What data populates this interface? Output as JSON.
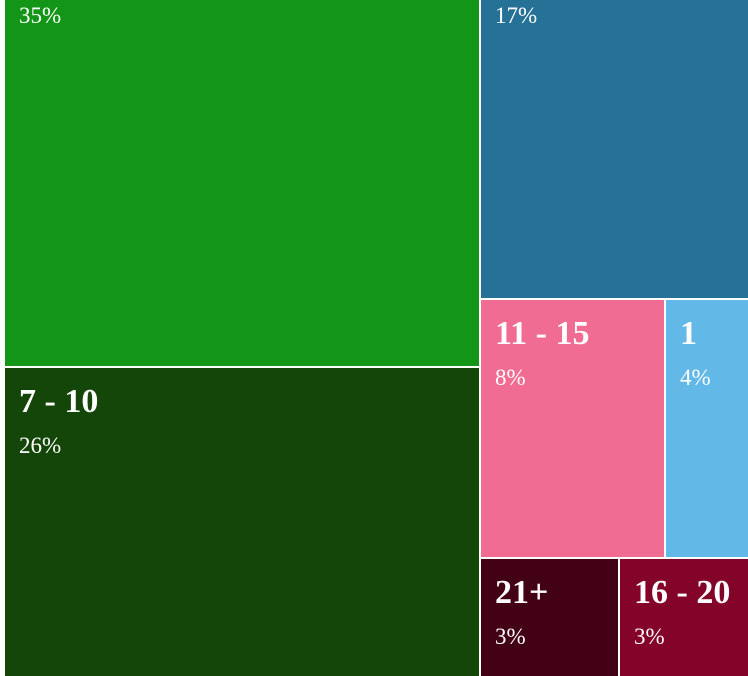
{
  "chart_data": {
    "type": "treemap",
    "legend": "none",
    "cells": [
      {
        "label": "",
        "value": 35,
        "percent_label": "35%",
        "color": "#139618"
      },
      {
        "label": "",
        "value": 17,
        "percent_label": "17%",
        "color": "#267196"
      },
      {
        "label": "7 - 10",
        "value": 26,
        "percent_label": "26%",
        "color": "#134608"
      },
      {
        "label": "11 - 15",
        "value": 8,
        "percent_label": "8%",
        "color": "#F06C93"
      },
      {
        "label": "1",
        "value": 4,
        "percent_label": "4%",
        "color": "#62B8E6"
      },
      {
        "label": "21+",
        "value": 3,
        "percent_label": "3%",
        "color": "#430115"
      },
      {
        "label": "16 - 20",
        "value": 3,
        "percent_label": "3%",
        "color": "#840429"
      }
    ]
  }
}
